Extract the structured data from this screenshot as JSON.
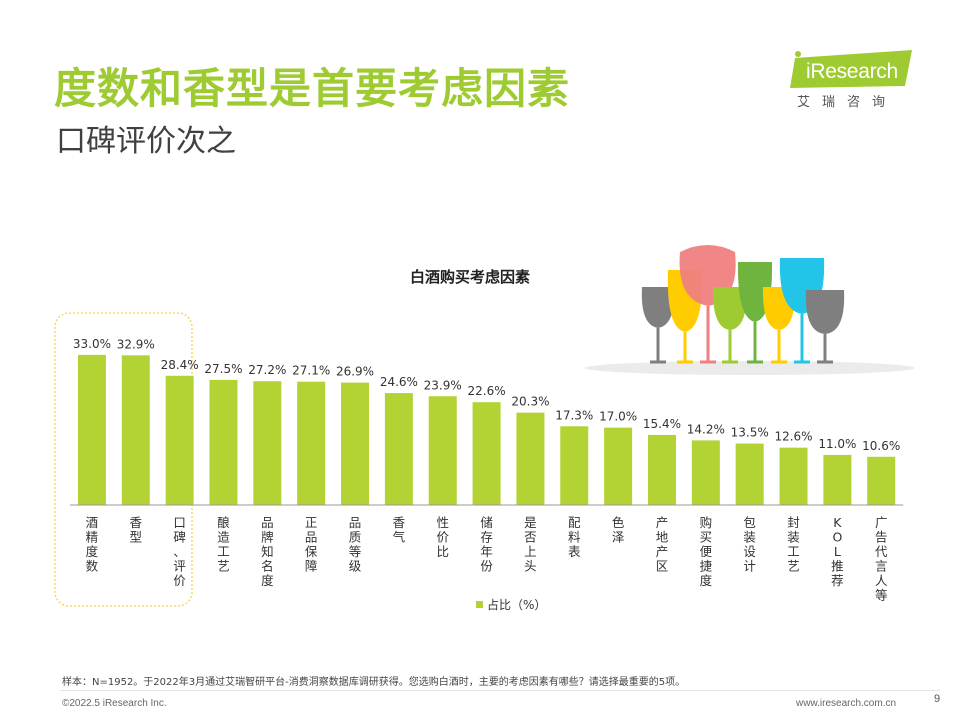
{
  "title": "度数和香型是首要考虑因素",
  "subtitle": "口碑评价次之",
  "logo": {
    "en": "iResearch",
    "cn": "艾瑞咨询"
  },
  "note": "样本：N=1952。于2022年3月通过艾瑞智研平台-消费洞察数据库调研获得。您选购白酒时，主要的考虑因素有哪些？请选择最重要的5项。",
  "footer": {
    "left": "©2022.5 iResearch Inc.",
    "right": "www.iresearch.com.cn",
    "page": "9"
  },
  "colors": {
    "bar": "#b3d234",
    "title": "#9ecb32",
    "highlight_border": "#f5d24a"
  },
  "chart_data": {
    "type": "bar",
    "title": "白酒购买考虑因素",
    "categories": [
      "酒精度数",
      "香型",
      "口碑、评价",
      "酿造工艺",
      "品牌知名度",
      "正品保障",
      "品质等级",
      "香气",
      "性价比",
      "储存年份",
      "是否上头",
      "配料表",
      "色泽",
      "产地产区",
      "购买便捷度",
      "包装设计",
      "封装工艺",
      "KOL推荐",
      "广告代言人等"
    ],
    "values": [
      33.0,
      32.9,
      28.4,
      27.5,
      27.2,
      27.1,
      26.9,
      24.6,
      23.9,
      22.6,
      20.3,
      17.3,
      17.0,
      15.4,
      14.2,
      13.5,
      12.6,
      11.0,
      10.6
    ],
    "value_labels": [
      "33.0%",
      "32.9%",
      "28.4%",
      "27.5%",
      "27.2%",
      "27.1%",
      "26.9%",
      "24.6%",
      "23.9%",
      "22.6%",
      "20.3%",
      "17.3%",
      "17.0%",
      "15.4%",
      "14.2%",
      "13.5%",
      "12.6%",
      "11.0%",
      "10.6%"
    ],
    "series": [
      {
        "name": "占比（%）"
      }
    ],
    "legend_position": "bottom",
    "grid": false,
    "highlighted_categories": [
      "酒精度数",
      "香型",
      "口碑、评价"
    ]
  }
}
